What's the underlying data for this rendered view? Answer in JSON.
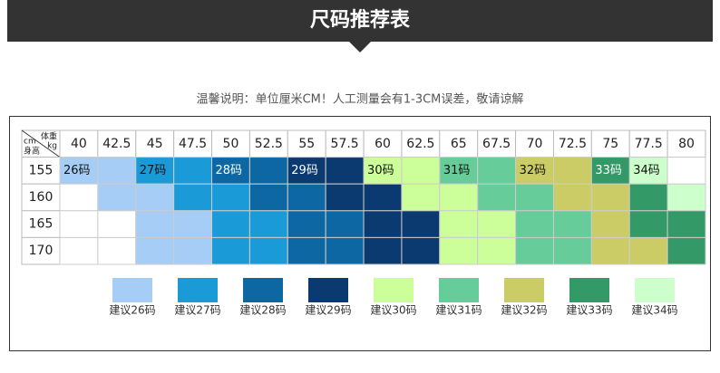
{
  "header": {
    "title": "尺码推荐表"
  },
  "note": "温馨说明：单位厘米CM！人工测量会有1-3CM误差，敬请谅解",
  "table": {
    "corner": {
      "weight": "体重",
      "weight_unit": "kg",
      "height_unit": "cm",
      "height": "身高"
    },
    "weights": [
      "40",
      "42.5",
      "45",
      "47.5",
      "50",
      "52.5",
      "55",
      "57.5",
      "60",
      "62.5",
      "65",
      "67.5",
      "70",
      "72.5",
      "75",
      "77.5",
      "80"
    ],
    "rows": [
      {
        "height": "155",
        "cells": [
          0,
          0,
          1,
          1,
          2,
          2,
          3,
          3,
          4,
          4,
          5,
          5,
          6,
          6,
          7,
          8,
          null
        ],
        "labels": [
          "26码",
          null,
          "27码",
          null,
          "28码",
          null,
          "29码",
          null,
          "30码",
          null,
          "31码",
          null,
          "32码",
          null,
          "33码",
          "34码",
          null
        ]
      },
      {
        "height": "160",
        "cells": [
          null,
          0,
          0,
          1,
          1,
          2,
          2,
          3,
          3,
          4,
          4,
          5,
          5,
          6,
          6,
          7,
          8
        ]
      },
      {
        "height": "165",
        "cells": [
          null,
          null,
          0,
          0,
          1,
          1,
          2,
          2,
          3,
          3,
          4,
          4,
          5,
          5,
          6,
          7,
          7
        ]
      },
      {
        "height": "170",
        "cells": [
          null,
          null,
          0,
          0,
          1,
          1,
          2,
          2,
          3,
          3,
          4,
          4,
          5,
          5,
          6,
          6,
          7
        ]
      }
    ]
  },
  "legend": [
    {
      "label": "建议26码",
      "color": "#a6cdf5"
    },
    {
      "label": "建议27码",
      "color": "#1a9bd7"
    },
    {
      "label": "建议28码",
      "color": "#0c67a3"
    },
    {
      "label": "建议29码",
      "color": "#0b3a70"
    },
    {
      "label": "建议30码",
      "color": "#ccff99"
    },
    {
      "label": "建议31码",
      "color": "#66cc99"
    },
    {
      "label": "建议32码",
      "color": "#cccc66"
    },
    {
      "label": "建议33码",
      "color": "#339966"
    },
    {
      "label": "建议34码",
      "color": "#ccffcc"
    }
  ]
}
